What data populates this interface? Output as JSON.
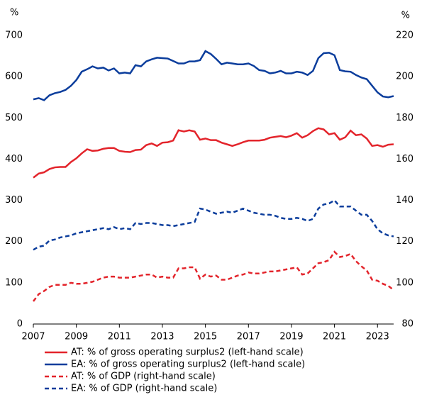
{
  "chart_data": {
    "type": "line",
    "y_label": "%",
    "y2_label": "%",
    "x": [
      2007,
      2007.25,
      2007.5,
      2007.75,
      2008,
      2008.25,
      2008.5,
      2008.75,
      2009,
      2009.25,
      2009.5,
      2009.75,
      2010,
      2010.25,
      2010.5,
      2010.75,
      2011,
      2011.25,
      2011.5,
      2011.75,
      2012,
      2012.25,
      2012.5,
      2012.75,
      2013,
      2013.25,
      2013.5,
      2013.75,
      2014,
      2014.25,
      2014.5,
      2014.75,
      2015,
      2015.25,
      2015.5,
      2015.75,
      2016,
      2016.25,
      2016.5,
      2016.75,
      2017,
      2017.25,
      2017.5,
      2017.75,
      2018,
      2018.25,
      2018.5,
      2018.75,
      2019,
      2019.25,
      2019.5,
      2019.75,
      2020,
      2020.25,
      2020.5,
      2020.75,
      2021,
      2021.25,
      2021.5,
      2021.75,
      2022,
      2022.25,
      2022.5,
      2022.75,
      2023,
      2023.25,
      2023.5,
      2023.75
    ],
    "series": [
      {
        "name": "AT: % of gross operating surplus2 (left-hand scale)",
        "color": "#e3242b",
        "style": "solid",
        "axis": "y",
        "values": [
          355,
          365,
          368,
          376,
          380,
          381,
          381,
          393,
          402,
          414,
          424,
          420,
          421,
          425,
          427,
          427,
          420,
          418,
          417,
          422,
          423,
          434,
          438,
          432,
          440,
          441,
          445,
          470,
          467,
          470,
          467,
          447,
          450,
          446,
          446,
          440,
          436,
          432,
          436,
          441,
          445,
          445,
          445,
          447,
          452,
          454,
          456,
          453,
          457,
          463,
          452,
          458,
          468,
          475,
          472,
          460,
          463,
          447,
          453,
          469,
          458,
          460,
          450,
          432,
          434,
          430,
          435,
          436
        ]
      },
      {
        "name": "EA: % of gross operating surplus2 (left-hand scale)",
        "color": "#0b3d9c",
        "style": "solid",
        "axis": "y",
        "values": [
          545,
          548,
          543,
          555,
          560,
          563,
          568,
          578,
          592,
          612,
          618,
          625,
          620,
          622,
          615,
          620,
          608,
          610,
          608,
          628,
          625,
          637,
          642,
          646,
          645,
          644,
          638,
          632,
          632,
          637,
          637,
          640,
          662,
          655,
          643,
          630,
          634,
          632,
          630,
          630,
          632,
          626,
          616,
          614,
          608,
          610,
          614,
          608,
          608,
          612,
          610,
          604,
          614,
          645,
          657,
          658,
          652,
          616,
          613,
          612,
          604,
          598,
          594,
          578,
          562,
          552,
          550,
          553
        ]
      },
      {
        "name": "AT: % of GDP (right-hand scale)",
        "color": "#e3242b",
        "style": "dashed",
        "axis": "y2",
        "values": [
          91,
          94.5,
          96,
          98,
          99,
          99,
          99,
          100,
          99.5,
          99.5,
          100,
          100.5,
          101.5,
          102.5,
          103,
          103,
          102.5,
          102.5,
          102.5,
          103,
          103.5,
          104,
          104,
          102.5,
          103,
          102.5,
          102.5,
          107,
          107,
          107.5,
          107.5,
          102,
          104,
          103,
          103.5,
          101.5,
          101.5,
          102.5,
          103.5,
          104,
          105,
          104.5,
          104.5,
          105,
          105.5,
          105.5,
          106,
          106.5,
          107,
          107.5,
          104,
          104.5,
          107,
          109.5,
          110,
          111,
          115,
          112.5,
          113,
          114,
          110.5,
          108,
          106,
          101.5,
          101,
          99.5,
          98.5,
          96.5
        ]
      },
      {
        "name": "EA: % of GDP (right-hand scale)",
        "color": "#0b3d9c",
        "style": "dashed",
        "axis": "y2",
        "values": [
          116,
          117.5,
          118,
          120.5,
          121,
          122,
          122.5,
          123,
          124,
          124.5,
          125,
          125.5,
          126,
          126.5,
          126,
          127,
          126,
          126.5,
          126,
          129,
          128.5,
          129,
          129,
          128.5,
          128,
          128,
          127.5,
          128,
          128.5,
          129,
          129.5,
          136,
          135.5,
          134.5,
          133.5,
          134,
          134.5,
          134,
          135,
          136,
          135,
          134,
          133.5,
          133,
          133,
          132.5,
          131.5,
          131,
          131,
          131.5,
          131,
          130,
          131,
          136,
          138,
          138.5,
          140,
          137,
          137,
          137,
          135,
          133,
          133,
          130,
          126,
          124,
          123,
          122.5
        ]
      }
    ],
    "xlim": [
      2007,
      2023.75
    ],
    "xticks": [
      2007,
      2009,
      2011,
      2013,
      2015,
      2017,
      2019,
      2021,
      2023
    ],
    "ylim": [
      0,
      700
    ],
    "yticks": [
      0,
      100,
      200,
      300,
      400,
      500,
      600,
      700
    ],
    "y2lim": [
      80,
      220
    ],
    "y2ticks": [
      80,
      100,
      120,
      140,
      160,
      180,
      200,
      220
    ],
    "grid": false
  }
}
